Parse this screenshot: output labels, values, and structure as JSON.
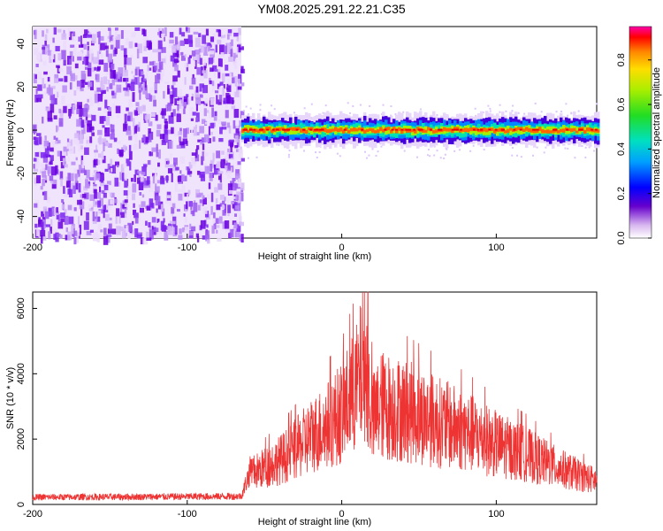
{
  "title": "YM08.2025.291.22.21.C35",
  "chart_data": [
    {
      "type": "heatmap",
      "name": "spectrogram",
      "xlabel": "Height of straight line (km)",
      "ylabel": "Frequency (Hz)",
      "xlim": [
        -200,
        165
      ],
      "ylim": [
        -50,
        48
      ],
      "xticks": [
        -200,
        -100,
        0,
        100
      ],
      "yticks": [
        -40,
        -20,
        0,
        20,
        40
      ],
      "noise_region_x": [
        -200,
        -65
      ],
      "signal_band": {
        "x": [
          -65,
          165
        ],
        "center_hz": 0,
        "half_width_hz": 5
      },
      "colorbar": {
        "label": "Normalized spectral amplitude",
        "range": [
          0.0,
          0.95
        ],
        "ticks": [
          0.0,
          0.2,
          0.4,
          0.6,
          0.8
        ]
      }
    },
    {
      "type": "line",
      "name": "snr",
      "xlabel": "Height of straight line (km)",
      "ylabel": "SNR (10 * v/v)",
      "xlim": [
        -200,
        165
      ],
      "ylim": [
        0,
        6500
      ],
      "xticks": [
        -200,
        -100,
        0,
        100
      ],
      "yticks": [
        0,
        2000,
        4000,
        6000
      ],
      "color": "#ee3333",
      "x": [
        -200,
        -150,
        -100,
        -65,
        -58,
        -50,
        -40,
        -30,
        -20,
        -10,
        0,
        10,
        15,
        20,
        25,
        40,
        60,
        80,
        100,
        120,
        140,
        165
      ],
      "y": [
        220,
        230,
        240,
        250,
        1200,
        1400,
        1700,
        2100,
        2600,
        3000,
        3500,
        4500,
        5500,
        3200,
        3800,
        3600,
        3200,
        2800,
        2300,
        1900,
        1400,
        900
      ]
    }
  ]
}
